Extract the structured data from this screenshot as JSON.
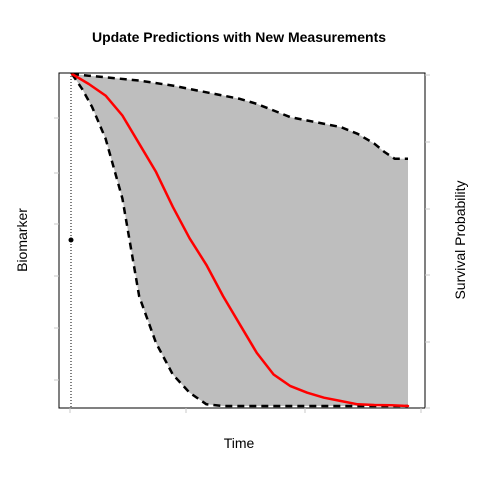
{
  "chart_data": {
    "type": "area",
    "title": "Update Predictions with New Measurements",
    "xlabel": "Time",
    "ylabel": "Biomarker",
    "ylabel_right": "Survival Probability",
    "xlim": [
      0,
      1
    ],
    "ylim": [
      0,
      1
    ],
    "grid": false,
    "legend": "none",
    "last_measurement_time": 0.0,
    "observed_points": [
      {
        "x": 0.0,
        "y": 0.5
      }
    ],
    "series": [
      {
        "role": "upper-bound",
        "style": "dashed",
        "color": "#000000",
        "x": [
          0.0,
          0.05,
          0.1,
          0.2,
          0.3,
          0.4,
          0.5,
          0.55,
          0.6,
          0.65,
          0.7,
          0.8,
          0.85,
          0.9,
          0.93,
          0.96,
          1.0
        ],
        "y": [
          1.0,
          0.995,
          0.99,
          0.98,
          0.965,
          0.945,
          0.925,
          0.91,
          0.89,
          0.87,
          0.86,
          0.84,
          0.82,
          0.79,
          0.765,
          0.745,
          0.745
        ]
      },
      {
        "role": "prediction",
        "style": "solid",
        "color": "#ff0000",
        "x": [
          0.0,
          0.05,
          0.1,
          0.15,
          0.2,
          0.25,
          0.3,
          0.35,
          0.4,
          0.45,
          0.5,
          0.55,
          0.6,
          0.65,
          0.7,
          0.75,
          0.8,
          0.85,
          0.9,
          0.95,
          1.0
        ],
        "y": [
          1.0,
          0.97,
          0.935,
          0.875,
          0.79,
          0.705,
          0.6,
          0.505,
          0.425,
          0.33,
          0.245,
          0.16,
          0.095,
          0.06,
          0.04,
          0.025,
          0.015,
          0.005,
          0.003,
          0.002,
          0.0
        ]
      },
      {
        "role": "lower-bound",
        "style": "dashed",
        "color": "#000000",
        "x": [
          0.0,
          0.03,
          0.06,
          0.1,
          0.15,
          0.2,
          0.25,
          0.3,
          0.35,
          0.4,
          0.45,
          0.5,
          0.6,
          0.7,
          0.8,
          0.9,
          1.0
        ],
        "y": [
          1.0,
          0.955,
          0.9,
          0.805,
          0.625,
          0.33,
          0.19,
          0.095,
          0.04,
          0.005,
          0.0,
          0.0,
          0.0,
          0.0,
          0.0,
          0.0,
          0.0
        ]
      }
    ],
    "fill_color": "#bebebe"
  }
}
